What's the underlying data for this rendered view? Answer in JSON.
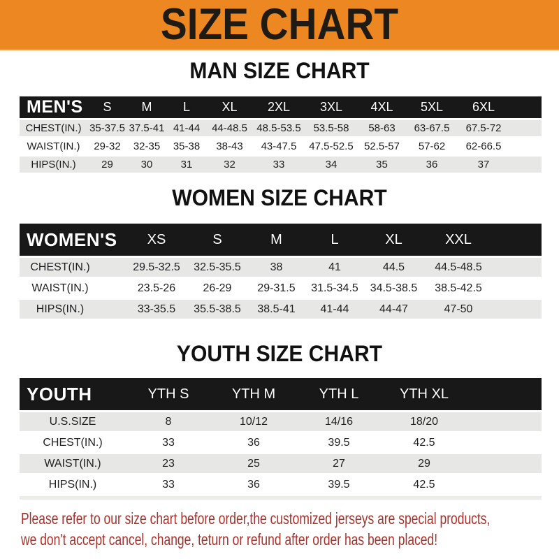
{
  "banner": {
    "title": "SIZE CHART"
  },
  "colors": {
    "banner-bg": "#ED8722",
    "banner-text": "#1E1A14",
    "header-bar": "#181818",
    "header-text": "#FFFFFF",
    "row-alt": "#E7E7E5",
    "row-white": "#FFFFFF",
    "title-text": "#111111",
    "note-red": "#A5342E"
  },
  "sections": [
    {
      "id": "man",
      "title": "MAN SIZE CHART",
      "table": {
        "header_label": "MEN'S",
        "columns": [
          "S",
          "M",
          "L",
          "XL",
          "2XL",
          "3XL",
          "4XL",
          "5XL",
          "6XL"
        ],
        "rows": [
          {
            "key": "chest",
            "label": "CHEST(IN.)",
            "values": [
              "35-37.5",
              "37.5-41",
              "41-44",
              "44-48.5",
              "48.5-53.5",
              "53.5-58",
              "58-63",
              "63-67.5",
              "67.5-72"
            ]
          },
          {
            "key": "waist",
            "label": "WAIST(IN.)",
            "values": [
              "29-32",
              "32-35",
              "35-38",
              "38-43",
              "43-47.5",
              "47.5-52.5",
              "52.5-57",
              "57-62",
              "62-66.5"
            ]
          },
          {
            "key": "hips",
            "label": "HIPS(IN.)",
            "values": [
              "29",
              "30",
              "31",
              "32",
              "33",
              "34",
              "35",
              "36",
              "37"
            ]
          }
        ]
      }
    },
    {
      "id": "women",
      "title": "WOMEN SIZE CHART",
      "table": {
        "header_label": "WOMEN'S",
        "columns": [
          "XS",
          "S",
          "M",
          "L",
          "XL",
          "XXL"
        ],
        "rows": [
          {
            "key": "chest",
            "label": "CHEST(IN.)",
            "values": [
              "29.5-32.5",
              "32.5-35.5",
              "38",
              "41",
              "44.5",
              "44.5-48.5"
            ]
          },
          {
            "key": "waist",
            "label": "WAIST(IN.)",
            "values": [
              "23.5-26",
              "26-29",
              "29-31.5",
              "31.5-34.5",
              "34.5-38.5",
              "38.5-42.5"
            ]
          },
          {
            "key": "hips",
            "label": "HIPS(IN.)",
            "values": [
              "33-35.5",
              "35.5-38.5",
              "38.5-41",
              "41-44",
              "44-47",
              "47-50"
            ]
          }
        ]
      }
    },
    {
      "id": "youth",
      "title": "YOUTH SIZE CHART",
      "table": {
        "header_label": "YOUTH",
        "columns": [
          "YTH S",
          "YTH M",
          "YTH L",
          "YTH XL"
        ],
        "rows": [
          {
            "key": "us-size",
            "label": "U.S.SIZE",
            "values": [
              "8",
              "10/12",
              "14/16",
              "18/20"
            ]
          },
          {
            "key": "chest",
            "label": "CHEST(IN.)",
            "values": [
              "33",
              "36",
              "39.5",
              "42.5"
            ]
          },
          {
            "key": "waist",
            "label": "WAIST(IN.)",
            "values": [
              "23",
              "25",
              "27",
              "29"
            ]
          },
          {
            "key": "hips",
            "label": "HIPS(IN.)",
            "values": [
              "33",
              "36",
              "39.5",
              "42.5"
            ]
          }
        ]
      }
    }
  ],
  "disclaimer": {
    "line1": "Please refer to our size chart before order,the customized jerseys are special products,",
    "line2": "we don't accept cancel, change, teturn or refund after order has been placed!"
  }
}
